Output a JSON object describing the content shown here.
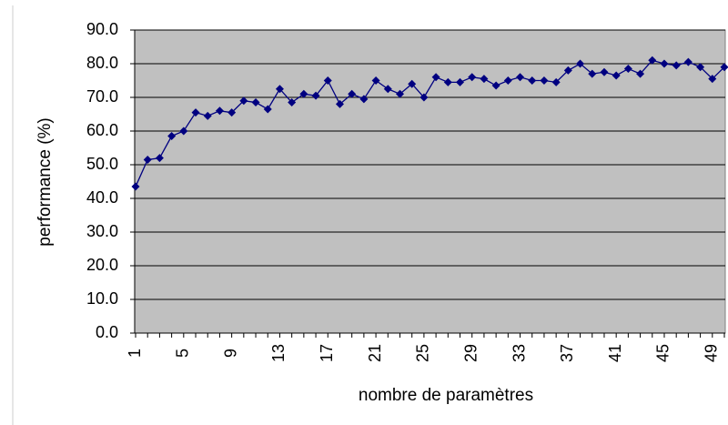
{
  "chart_data": {
    "type": "line",
    "x_label": "nombre de paramètres",
    "y_label": "performance (%)",
    "categories": [
      1,
      null,
      null,
      null,
      5,
      null,
      null,
      null,
      9,
      null,
      null,
      null,
      13,
      null,
      null,
      null,
      17,
      null,
      null,
      null,
      21,
      null,
      null,
      null,
      25,
      null,
      null,
      null,
      29,
      null,
      null,
      null,
      33,
      null,
      null,
      null,
      37,
      null,
      null,
      null,
      41,
      null,
      null,
      null,
      45,
      null,
      null,
      null,
      49,
      null
    ],
    "values": [
      43.5,
      51.5,
      52,
      58.5,
      60,
      65.5,
      64.5,
      66,
      65.5,
      69,
      68.5,
      66.5,
      72.5,
      68.5,
      71,
      70.5,
      75,
      68,
      71,
      69.5,
      75,
      72.5,
      71,
      74,
      70,
      76,
      74.5,
      74.5,
      76,
      75.5,
      73.5,
      75,
      76,
      75,
      75,
      74.5,
      78,
      80,
      77,
      77.5,
      76.5,
      78.5,
      77,
      81,
      80,
      79.5,
      80.5,
      79,
      75.5,
      79
    ],
    "color": "#000080",
    "ylim": [
      0,
      90
    ],
    "yticks": [
      {
        "value": 0,
        "label": "0.0"
      },
      {
        "value": 10,
        "label": "10.0"
      },
      {
        "value": 20,
        "label": "20.0"
      },
      {
        "value": 30,
        "label": "30.0"
      },
      {
        "value": 40,
        "label": "40.0"
      },
      {
        "value": 50,
        "label": "50.0"
      },
      {
        "value": 60,
        "label": "60.0"
      },
      {
        "value": 70,
        "label": "70.0"
      },
      {
        "value": 80,
        "label": "80.0"
      },
      {
        "value": 90,
        "label": "90.0"
      }
    ],
    "grid": true
  }
}
